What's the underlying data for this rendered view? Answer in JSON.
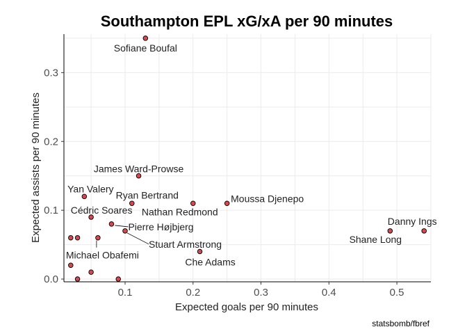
{
  "chart_data": {
    "type": "scatter",
    "title": "Southampton EPL xG/xA per 90 minutes",
    "xlabel": "Expected goals per 90 minutes",
    "ylabel": "Expected assists per 90 minutes",
    "caption": "statsbomb/fbref",
    "xlim": [
      0.01,
      0.55
    ],
    "ylim": [
      -0.004,
      0.356
    ],
    "x_ticks": [
      0.1,
      0.2,
      0.3,
      0.4,
      0.5
    ],
    "x_tick_labels": [
      "0.1",
      "0.2",
      "0.3",
      "0.4",
      "0.5"
    ],
    "y_ticks": [
      0.0,
      0.1,
      0.2,
      0.3
    ],
    "y_tick_labels": [
      "0.0",
      "0.1",
      "0.2",
      "0.3"
    ],
    "grid": true,
    "point_color": "#d7474d",
    "points": [
      {
        "name": "Sofiane Boufal",
        "x": 0.13,
        "y": 0.35
      },
      {
        "name": "James Ward-Prowse",
        "x": 0.12,
        "y": 0.15
      },
      {
        "name": "Yan Valery",
        "x": 0.04,
        "y": 0.12
      },
      {
        "name": "Ryan Bertrand",
        "x": 0.11,
        "y": 0.11
      },
      {
        "name": "Nathan Redmond",
        "x": 0.2,
        "y": 0.11
      },
      {
        "name": "Moussa Djenepo",
        "x": 0.25,
        "y": 0.11
      },
      {
        "name": "Cédric Soares",
        "x": 0.05,
        "y": 0.09
      },
      {
        "name": "Pierre Højbjerg",
        "x": 0.08,
        "y": 0.08
      },
      {
        "name": "Stuart Armstrong",
        "x": 0.1,
        "y": 0.07
      },
      {
        "name": "Michael Obafemi",
        "x": 0.06,
        "y": 0.06
      },
      {
        "name": "Che Adams",
        "x": 0.21,
        "y": 0.04
      },
      {
        "name": "Danny Ings",
        "x": 0.54,
        "y": 0.07
      },
      {
        "name": "Shane Long",
        "x": 0.49,
        "y": 0.07
      },
      {
        "name": "",
        "x": 0.02,
        "y": 0.06
      },
      {
        "name": "",
        "x": 0.03,
        "y": 0.06
      },
      {
        "name": "",
        "x": 0.02,
        "y": 0.02
      },
      {
        "name": "",
        "x": 0.05,
        "y": 0.01
      },
      {
        "name": "",
        "x": 0.03,
        "y": 0.0
      },
      {
        "name": "",
        "x": 0.09,
        "y": 0.0
      }
    ]
  }
}
